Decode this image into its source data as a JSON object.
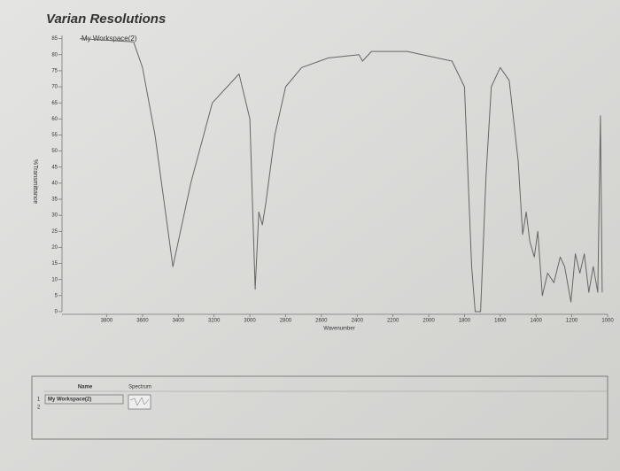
{
  "chart_data": {
    "type": "line",
    "title": "Varian Resolutions",
    "x_label": "Wavenumber",
    "y_label": "%Transmittance",
    "x": [
      3950,
      3650,
      3600,
      3530,
      3430,
      3330,
      3210,
      3060,
      3000,
      2970,
      2950,
      2930,
      2910,
      2860,
      2800,
      2710,
      2560,
      2390,
      2370,
      2320,
      2120,
      1870,
      1800,
      1760,
      1740,
      1710,
      1680,
      1650,
      1600,
      1550,
      1500,
      1475,
      1455,
      1435,
      1410,
      1390,
      1365,
      1335,
      1300,
      1265,
      1240,
      1205,
      1180,
      1155,
      1130,
      1105,
      1080,
      1055,
      1040,
      1030
    ],
    "series": [
      {
        "name": "My Workspace(2)",
        "color": "#666666",
        "values": [
          85,
          84,
          76,
          55,
          14,
          40,
          65,
          74,
          60,
          7,
          31,
          27,
          34,
          55,
          70,
          76,
          79,
          80,
          78,
          81,
          81,
          78,
          70,
          14,
          0,
          0,
          42,
          70,
          76,
          72,
          47,
          24,
          31,
          22,
          17,
          25,
          5,
          12,
          9,
          17,
          14,
          3,
          18,
          12,
          18,
          6,
          14,
          6,
          61,
          6
        ]
      }
    ],
    "xlim": [
      4050,
      1000
    ],
    "ylim": [
      0,
      86
    ],
    "xticks": [
      3800,
      3600,
      3400,
      3200,
      3000,
      2800,
      2600,
      2400,
      2200,
      2000,
      1800,
      1600,
      1400,
      1200,
      1000
    ],
    "yticks": [
      0,
      5,
      10,
      15,
      20,
      25,
      30,
      35,
      40,
      45,
      50,
      55,
      60,
      65,
      70,
      75,
      80,
      85
    ],
    "grid": false
  },
  "table": {
    "headers": [
      "Name",
      "Spectrum"
    ],
    "rows": [
      [
        "1",
        "My Workspace(2)"
      ],
      [
        "2"
      ]
    ]
  }
}
